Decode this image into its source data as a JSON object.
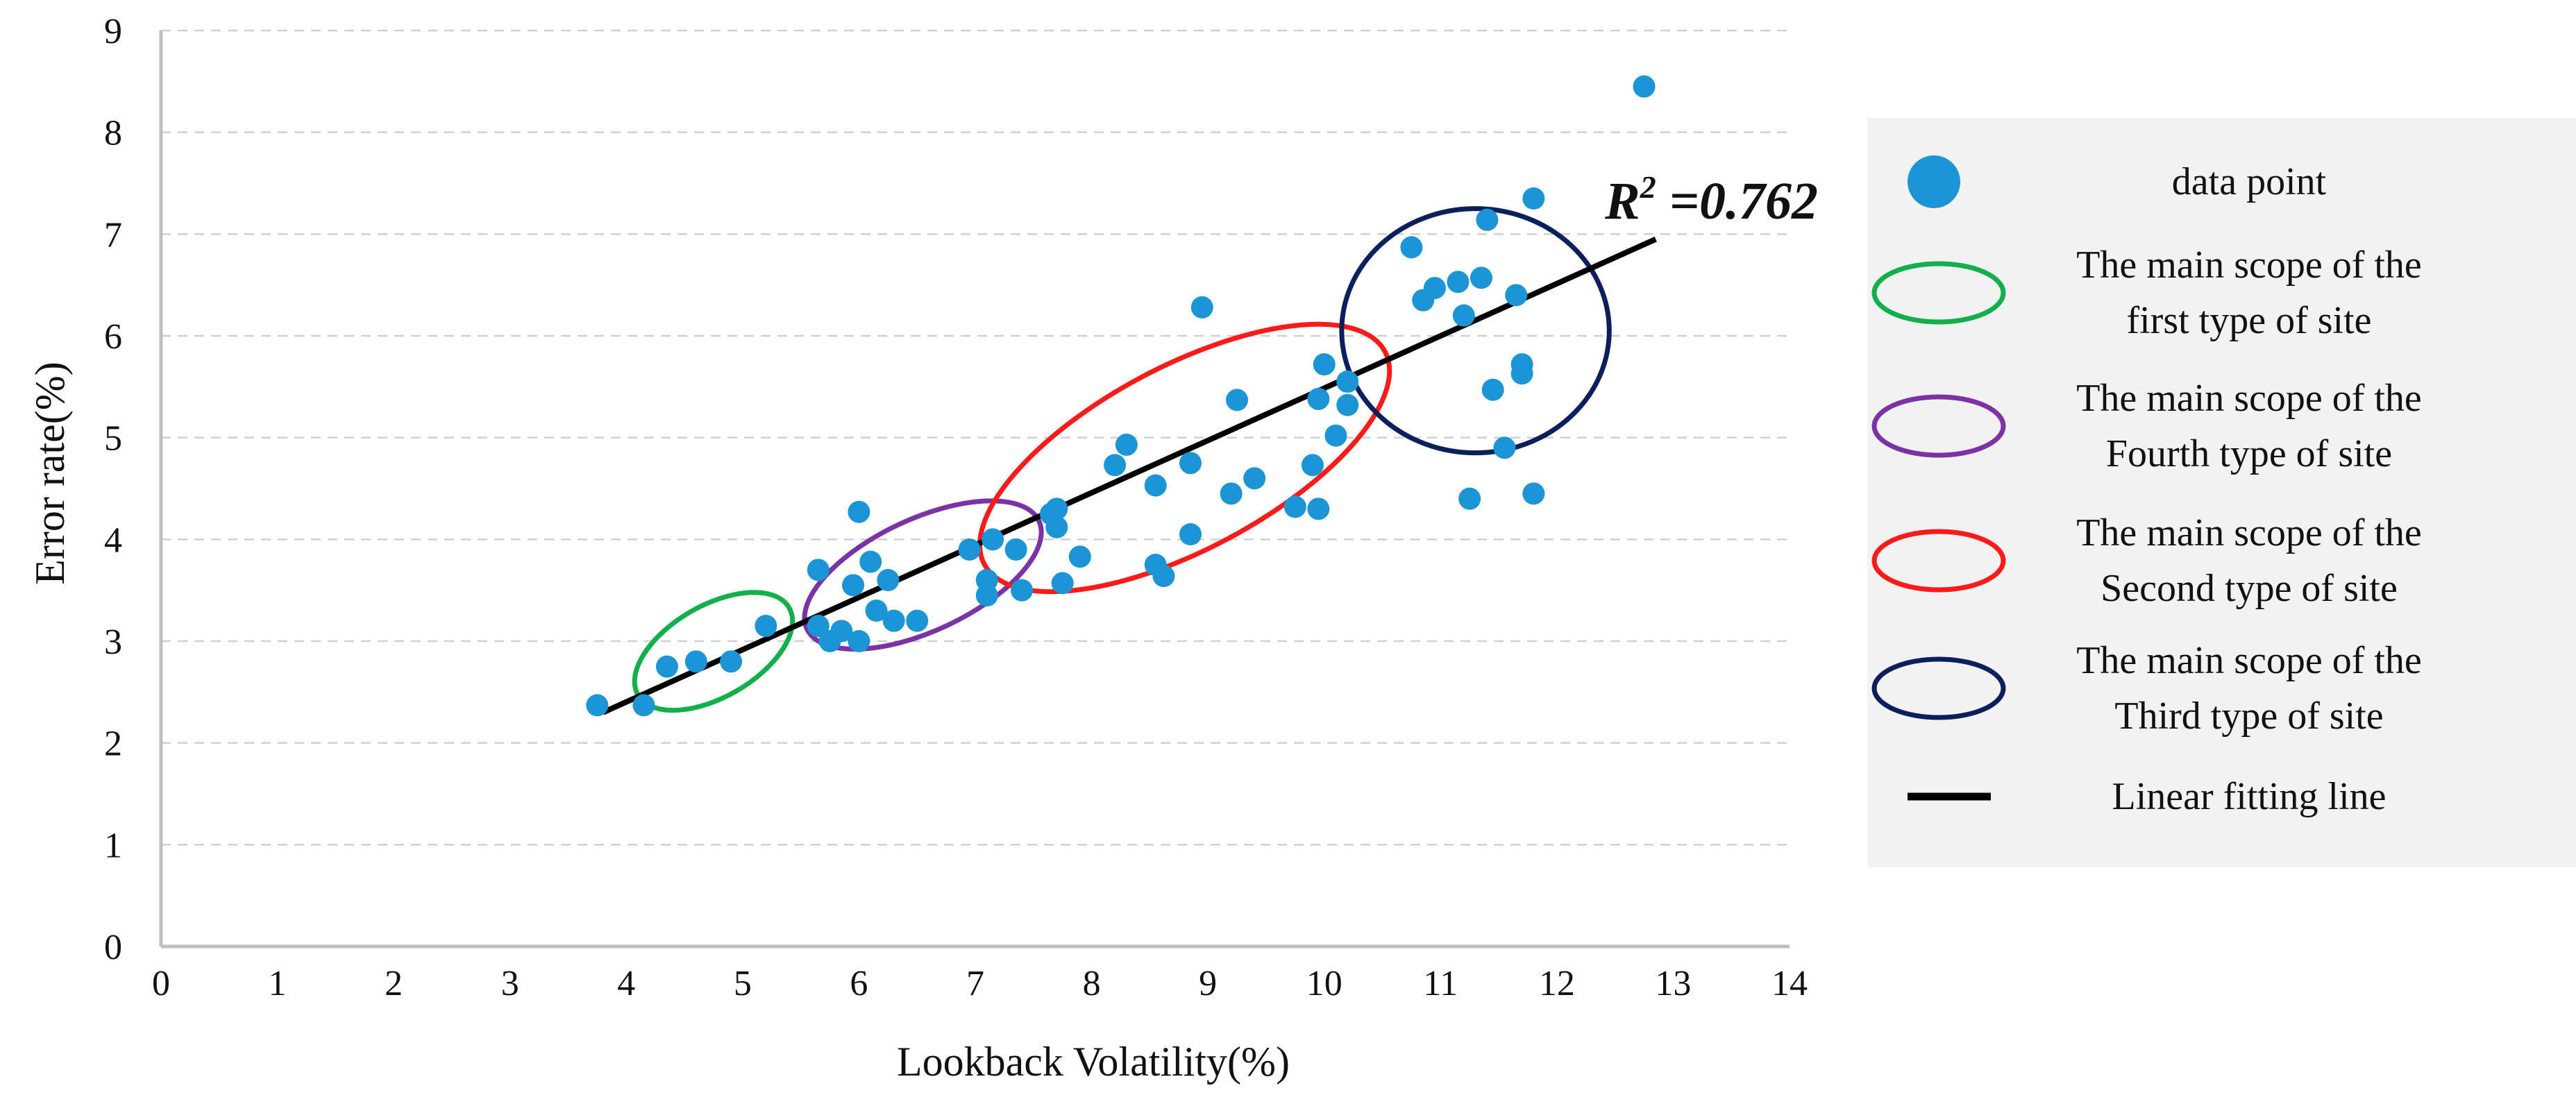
{
  "colors": {
    "point": "#1b95d6",
    "fit_line": "#000000",
    "grid": "#d0d0d0",
    "axis": "#bfbfbf",
    "legend_bg": "#f2f2f2",
    "green": "#12b04b",
    "purple": "#7a32a6",
    "red": "#ff1a1a",
    "navy": "#0b1f5c"
  },
  "chart_data": {
    "type": "scatter",
    "title": "",
    "xlabel": "Lookback Volatility(%)",
    "ylabel": "Error rate(%)",
    "xlim": [
      0,
      14
    ],
    "ylim": [
      0,
      9
    ],
    "x_ticks": [
      "0",
      "1",
      "2",
      "3",
      "4",
      "5",
      "6",
      "7",
      "8",
      "9",
      "10",
      "11",
      "12",
      "13",
      "14"
    ],
    "y_ticks": [
      "0",
      "1",
      "2",
      "3",
      "4",
      "5",
      "6",
      "7",
      "8",
      "9"
    ],
    "grid": "horizontal dashed",
    "annotation": {
      "prefix": "R",
      "sup": "2",
      "text": " =0.762"
    },
    "fit_line": {
      "x": [
        3.8,
        12.85
      ],
      "y": [
        2.3,
        6.95
      ]
    },
    "points": [
      {
        "x": 3.75,
        "y": 2.37
      },
      {
        "x": 4.15,
        "y": 2.37
      },
      {
        "x": 4.35,
        "y": 2.75
      },
      {
        "x": 4.6,
        "y": 2.8
      },
      {
        "x": 4.9,
        "y": 2.8
      },
      {
        "x": 5.2,
        "y": 3.15
      },
      {
        "x": 5.65,
        "y": 3.7
      },
      {
        "x": 5.65,
        "y": 3.15
      },
      {
        "x": 5.75,
        "y": 3.0
      },
      {
        "x": 5.85,
        "y": 3.1
      },
      {
        "x": 5.95,
        "y": 3.55
      },
      {
        "x": 6.0,
        "y": 4.27
      },
      {
        "x": 6.0,
        "y": 3.0
      },
      {
        "x": 6.1,
        "y": 3.78
      },
      {
        "x": 6.15,
        "y": 3.3
      },
      {
        "x": 6.25,
        "y": 3.6
      },
      {
        "x": 6.3,
        "y": 3.2
      },
      {
        "x": 6.5,
        "y": 3.2
      },
      {
        "x": 6.95,
        "y": 3.9
      },
      {
        "x": 7.1,
        "y": 3.6
      },
      {
        "x": 7.1,
        "y": 3.45
      },
      {
        "x": 7.15,
        "y": 4.0
      },
      {
        "x": 7.35,
        "y": 3.9
      },
      {
        "x": 7.4,
        "y": 3.5
      },
      {
        "x": 7.65,
        "y": 4.25
      },
      {
        "x": 7.7,
        "y": 4.3
      },
      {
        "x": 7.7,
        "y": 4.12
      },
      {
        "x": 7.75,
        "y": 3.57
      },
      {
        "x": 7.9,
        "y": 3.83
      },
      {
        "x": 8.2,
        "y": 4.73
      },
      {
        "x": 8.3,
        "y": 4.93
      },
      {
        "x": 8.55,
        "y": 4.53
      },
      {
        "x": 8.55,
        "y": 3.75
      },
      {
        "x": 8.62,
        "y": 3.64
      },
      {
        "x": 8.85,
        "y": 4.75
      },
      {
        "x": 8.85,
        "y": 4.05
      },
      {
        "x": 8.95,
        "y": 6.28
      },
      {
        "x": 9.2,
        "y": 4.45
      },
      {
        "x": 9.25,
        "y": 5.37
      },
      {
        "x": 9.4,
        "y": 4.6
      },
      {
        "x": 9.75,
        "y": 4.32
      },
      {
        "x": 9.9,
        "y": 4.73
      },
      {
        "x": 9.95,
        "y": 4.3
      },
      {
        "x": 9.95,
        "y": 5.38
      },
      {
        "x": 10.0,
        "y": 5.72
      },
      {
        "x": 10.1,
        "y": 5.02
      },
      {
        "x": 10.2,
        "y": 5.32
      },
      {
        "x": 10.2,
        "y": 5.55
      },
      {
        "x": 10.75,
        "y": 6.87
      },
      {
        "x": 10.85,
        "y": 6.35
      },
      {
        "x": 10.95,
        "y": 6.47
      },
      {
        "x": 11.15,
        "y": 6.53
      },
      {
        "x": 11.2,
        "y": 6.2
      },
      {
        "x": 11.25,
        "y": 4.4
      },
      {
        "x": 11.35,
        "y": 6.57
      },
      {
        "x": 11.4,
        "y": 7.14
      },
      {
        "x": 11.45,
        "y": 5.47
      },
      {
        "x": 11.55,
        "y": 4.9
      },
      {
        "x": 11.65,
        "y": 6.4
      },
      {
        "x": 11.7,
        "y": 5.72
      },
      {
        "x": 11.7,
        "y": 5.63
      },
      {
        "x": 11.8,
        "y": 7.35
      },
      {
        "x": 11.8,
        "y": 4.45
      },
      {
        "x": 12.75,
        "y": 8.45
      }
    ],
    "ellipses": [
      {
        "name": "ellipse-first-type",
        "color_key": "green",
        "cx": 4.75,
        "cy": 2.9,
        "rx": 0.75,
        "ry": 0.45,
        "angle": -30
      },
      {
        "name": "ellipse-fourth-type",
        "color_key": "purple",
        "cx": 6.55,
        "cy": 3.65,
        "rx": 1.1,
        "ry": 0.55,
        "angle": -25
      },
      {
        "name": "ellipse-second-type",
        "color_key": "red",
        "cx": 8.8,
        "cy": 4.8,
        "rx": 1.95,
        "ry": 0.9,
        "angle": -28
      },
      {
        "name": "ellipse-third-type",
        "color_key": "navy",
        "cx": 11.3,
        "cy": 6.05,
        "rx": 1.15,
        "ry": 1.2,
        "angle": 0
      }
    ],
    "legend": {
      "items": [
        {
          "kind": "point",
          "name": "legend-data-point",
          "lines": [
            "data point"
          ]
        },
        {
          "kind": "ellipse",
          "color_key": "green",
          "name": "legend-first-type",
          "lines": [
            "The main scope of the",
            "first type of site"
          ]
        },
        {
          "kind": "ellipse",
          "color_key": "purple",
          "name": "legend-fourth-type",
          "lines": [
            "The main scope of the",
            "Fourth type of site"
          ]
        },
        {
          "kind": "ellipse",
          "color_key": "red",
          "name": "legend-second-type",
          "lines": [
            "The main scope of the",
            "Second type of site"
          ]
        },
        {
          "kind": "ellipse",
          "color_key": "navy",
          "name": "legend-third-type",
          "lines": [
            "The main scope of the",
            "Third type of site"
          ]
        },
        {
          "kind": "line",
          "name": "legend-linear-fit",
          "lines": [
            "Linear fitting line"
          ]
        }
      ]
    }
  }
}
